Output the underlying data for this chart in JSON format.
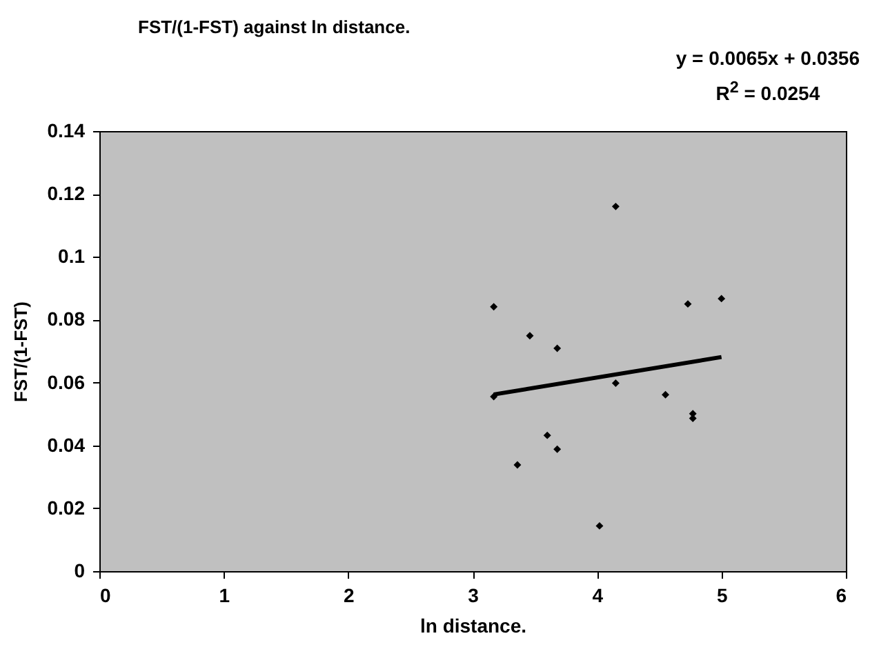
{
  "chart_data": {
    "type": "scatter",
    "title": "FST/(1-FST) against ln distance.",
    "xlabel": "ln distance.",
    "ylabel": "FST/(1-FST)",
    "annotations": [
      "y = 0.0065x + 0.0356",
      "R$^{2}$ = 0.0254"
    ],
    "series": [
      {
        "color": "#000000",
        "marker": "diamond",
        "x": [
          3.17,
          3.46,
          3.68,
          3.17,
          4.15,
          4.73,
          5.0,
          4.15,
          4.55,
          4.77,
          4.77,
          3.6,
          3.68,
          3.36,
          4.02
        ],
        "values": [
          0.0841,
          0.0749,
          0.0709,
          0.0555,
          0.116,
          0.085,
          0.0867,
          0.0598,
          0.0561,
          0.0501,
          0.0486,
          0.0432,
          0.0388,
          0.0338,
          0.0144
        ]
      },
      {
        "type": "line",
        "color": "#000000",
        "x": [
          3.17,
          5.0
        ],
        "values": [
          0.0562,
          0.0681
        ]
      }
    ],
    "xlim": [
      0,
      6
    ],
    "xticks": [
      0,
      1,
      2,
      3,
      4,
      5,
      6
    ],
    "ylim": [
      0,
      0.14
    ],
    "yticks": [
      0,
      0.02,
      0.04,
      0.06,
      0.08,
      0.1,
      0.12,
      0.14
    ],
    "grid": false
  }
}
